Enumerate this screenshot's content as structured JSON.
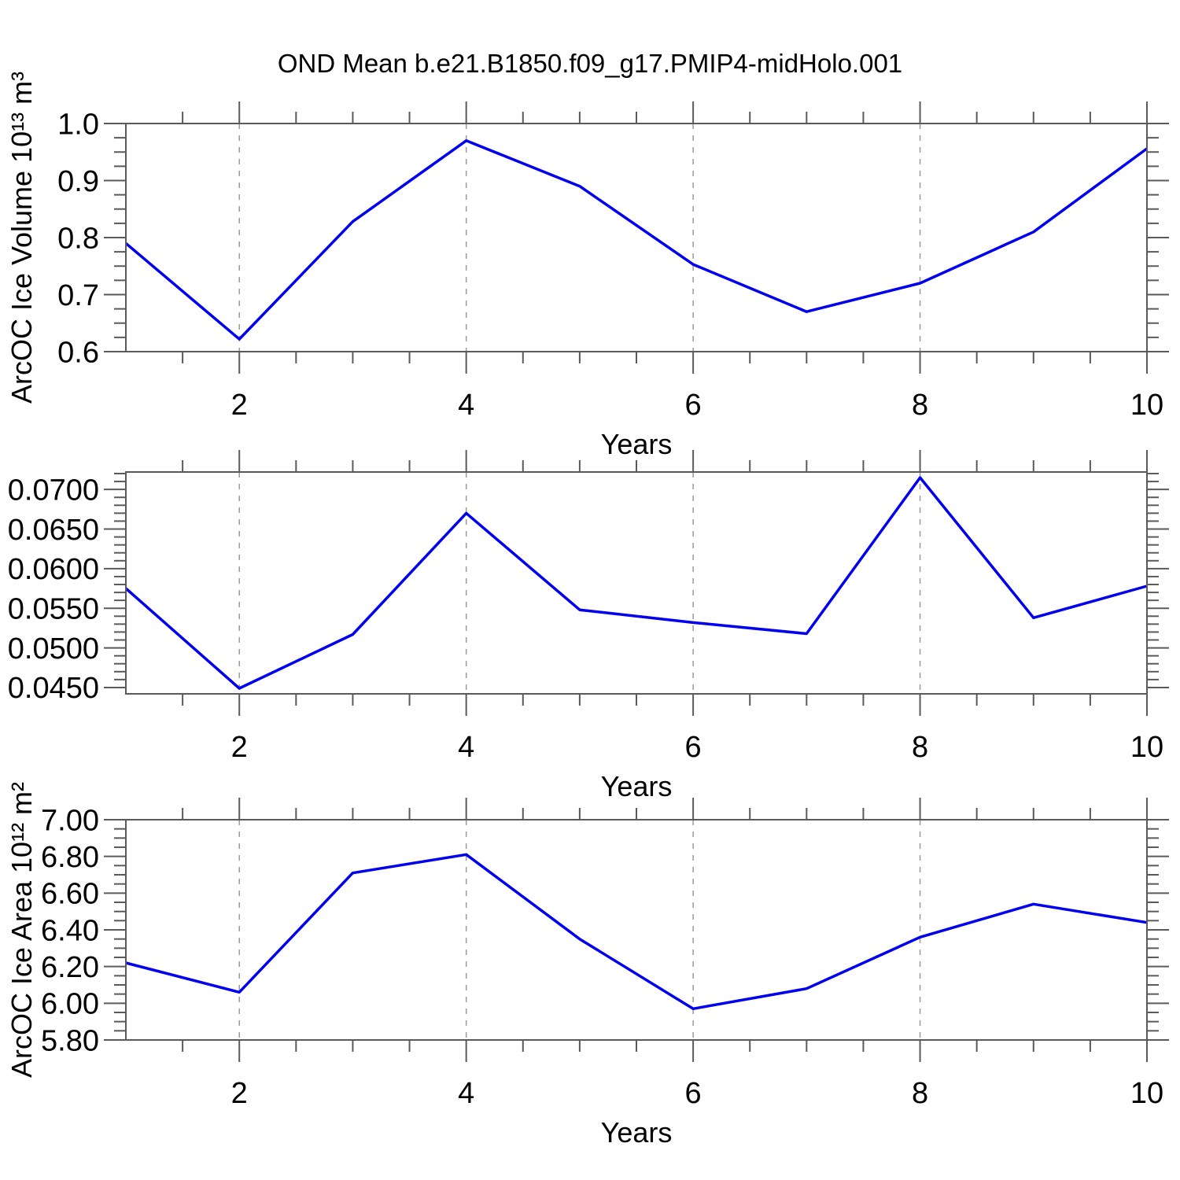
{
  "title": "OND Mean b.e21.B1850.f09_g17.PMIP4-midHolo.001",
  "colors": {
    "line": "#0000ee",
    "frame": "#5a5a5a",
    "grid": "#9a9a9a",
    "text": "#000000"
  },
  "chart_data": [
    {
      "type": "line",
      "x": [
        1,
        2,
        3,
        4,
        5,
        6,
        7,
        8,
        9,
        10
      ],
      "values": [
        0.79,
        0.622,
        0.828,
        0.97,
        0.89,
        0.753,
        0.67,
        0.72,
        0.81,
        0.956
      ],
      "xlabel": "Years",
      "ylabel": "ArcOC Ice Volume 10¹³ m³",
      "xlim": [
        1,
        10
      ],
      "ylim": [
        0.6,
        1.0
      ],
      "xticks": {
        "values": [
          2,
          4,
          6,
          8,
          10
        ],
        "labels": [
          "2",
          "4",
          "6",
          "8",
          "10"
        ],
        "minor_step": 0.5
      },
      "yticks": {
        "values": [
          0.6,
          0.7,
          0.8,
          0.9,
          1.0
        ],
        "labels": [
          "0.6",
          "0.7",
          "0.8",
          "0.9",
          "1.0"
        ],
        "minor_step": 0.025
      },
      "grid_x": [
        2,
        4,
        6,
        8
      ],
      "grid": "vertical-dashed",
      "legend": "none"
    },
    {
      "type": "line",
      "x": [
        1,
        2,
        3,
        4,
        5,
        6,
        7,
        8,
        9,
        10
      ],
      "values": [
        0.0575,
        0.0449,
        0.0517,
        0.067,
        0.0548,
        0.0532,
        0.0518,
        0.0715,
        0.0538,
        0.0578
      ],
      "xlabel": "Years",
      "ylabel": "",
      "xlim": [
        1,
        10
      ],
      "ylim": [
        0.0442,
        0.0722
      ],
      "xticks": {
        "values": [
          2,
          4,
          6,
          8,
          10
        ],
        "labels": [
          "2",
          "4",
          "6",
          "8",
          "10"
        ],
        "minor_step": 0.5
      },
      "yticks": {
        "values": [
          0.045,
          0.05,
          0.055,
          0.06,
          0.065,
          0.07
        ],
        "labels": [
          "0.0450",
          "0.0500",
          "0.0550",
          "0.0600",
          "0.0650",
          "0.0700"
        ],
        "minor_step": 0.001
      },
      "grid_x": [
        2,
        4,
        6,
        8
      ],
      "grid": "vertical-dashed",
      "legend": "none"
    },
    {
      "type": "line",
      "x": [
        1,
        2,
        3,
        4,
        5,
        6,
        7,
        8,
        9,
        10
      ],
      "values": [
        6.22,
        6.06,
        6.71,
        6.81,
        6.35,
        5.97,
        6.08,
        6.36,
        6.54,
        6.44
      ],
      "xlabel": "Years",
      "ylabel": "ArcOC Ice Area 10¹² m²",
      "xlim": [
        1,
        10
      ],
      "ylim": [
        5.8,
        7.0
      ],
      "xticks": {
        "values": [
          2,
          4,
          6,
          8,
          10
        ],
        "labels": [
          "2",
          "4",
          "6",
          "8",
          "10"
        ],
        "minor_step": 0.5
      },
      "yticks": {
        "values": [
          5.8,
          6.0,
          6.2,
          6.4,
          6.6,
          6.8,
          7.0
        ],
        "labels": [
          "5.80",
          "6.00",
          "6.20",
          "6.40",
          "6.60",
          "6.80",
          "7.00"
        ],
        "minor_step": 0.05
      },
      "grid_x": [
        2,
        4,
        6,
        8
      ],
      "grid": "vertical-dashed",
      "legend": "none"
    }
  ]
}
